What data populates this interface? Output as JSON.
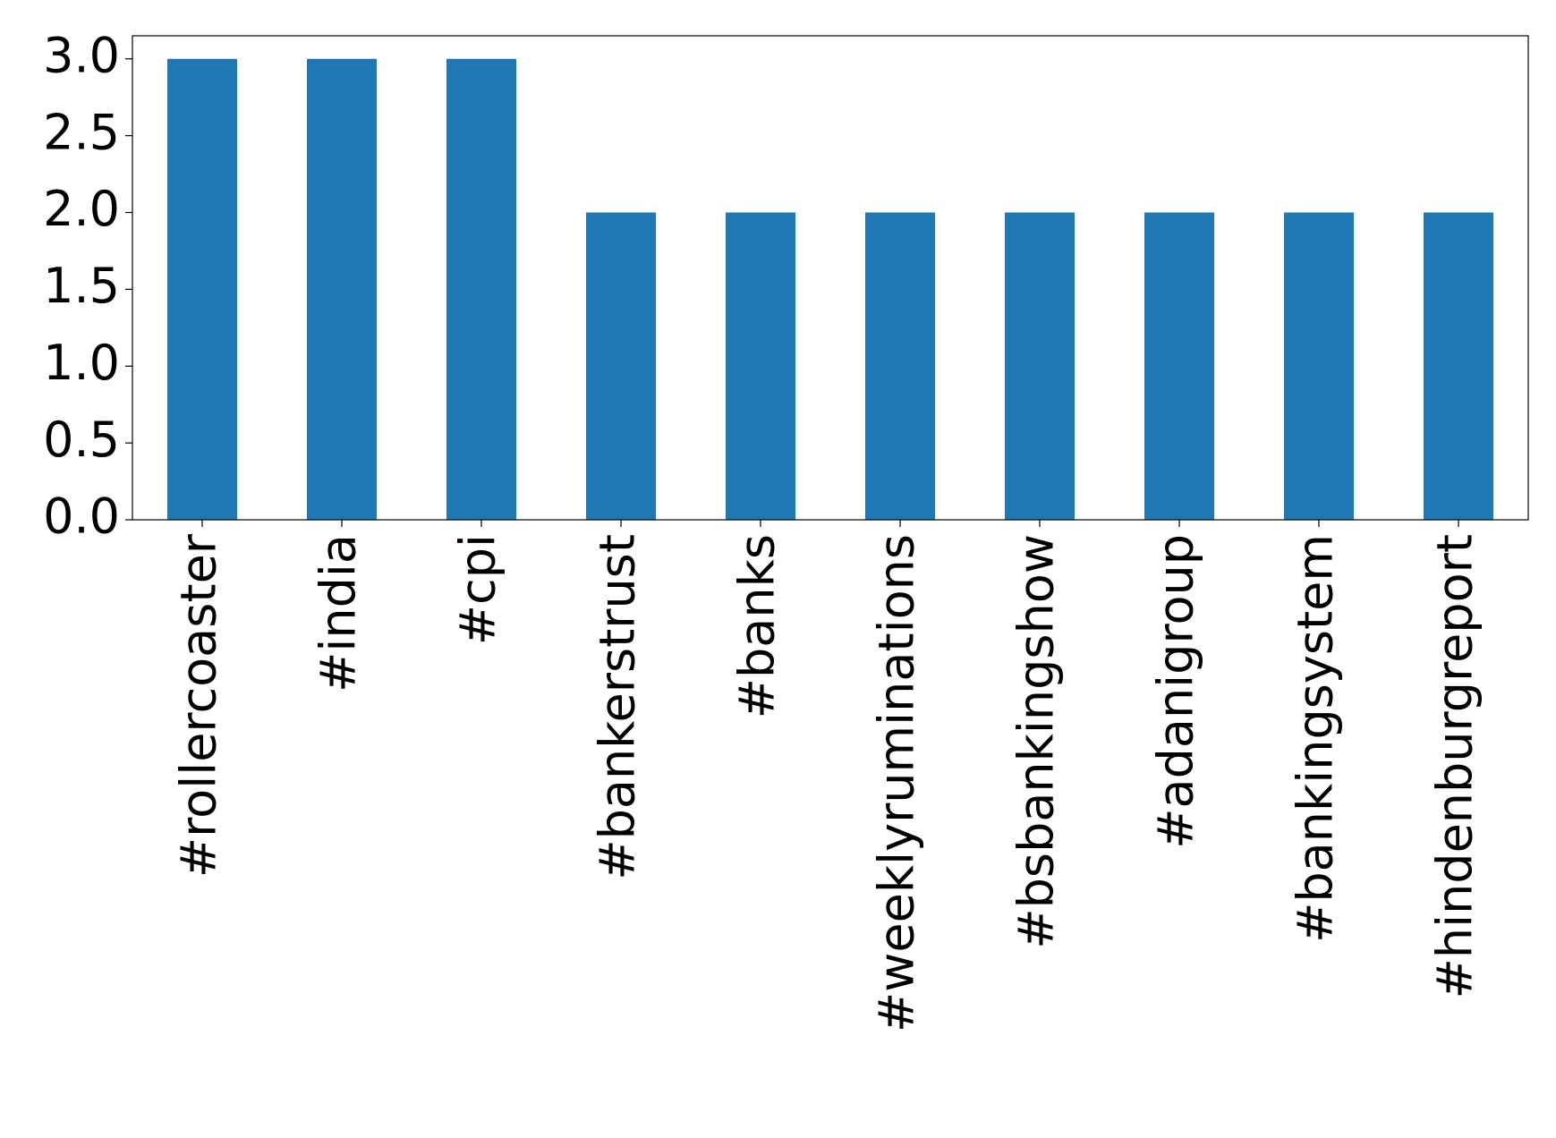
{
  "chart_data": {
    "type": "bar",
    "categories": [
      "#rollercoaster",
      "#india",
      "#cpi",
      "#bankerstrust",
      "#banks",
      "#weeklyruminations",
      "#bsbankingshow",
      "#adanigroup",
      "#bankingsystem",
      "#hindenburgreport"
    ],
    "values": [
      3,
      3,
      3,
      2,
      2,
      2,
      2,
      2,
      2,
      2
    ],
    "color": "#1f77b4",
    "ylim": [
      0,
      3.15
    ],
    "yticks": [
      {
        "value": 0,
        "label": "0.0"
      },
      {
        "value": 0.5,
        "label": "0.5"
      },
      {
        "value": 1,
        "label": "1.0"
      },
      {
        "value": 1.5,
        "label": "1.5"
      },
      {
        "value": 2,
        "label": "2.0"
      },
      {
        "value": 2.5,
        "label": "2.5"
      },
      {
        "value": 3,
        "label": "3.0"
      }
    ],
    "grid": false
  }
}
